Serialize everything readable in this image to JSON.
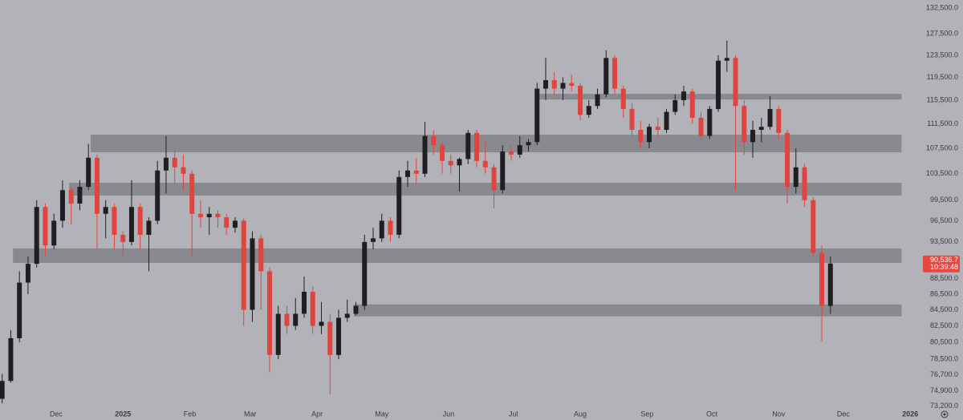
{
  "chart_data": {
    "type": "candlestick",
    "log_scale": true,
    "grid": false,
    "up_color": "#1f1f22",
    "down_color": "#e0443e",
    "zone_color": "#7b7c82",
    "xlim": [
      "2024-11-05",
      "2026-01-05"
    ],
    "xticks": [
      {
        "value": "2024-12-01",
        "label": "Dec"
      },
      {
        "value": "2025-01-01",
        "label": "2025"
      },
      {
        "value": "2025-02-01",
        "label": "Feb"
      },
      {
        "value": "2025-03-01",
        "label": "Mar"
      },
      {
        "value": "2025-04-01",
        "label": "Apr"
      },
      {
        "value": "2025-05-01",
        "label": "May"
      },
      {
        "value": "2025-06-01",
        "label": "Jun"
      },
      {
        "value": "2025-07-01",
        "label": "Jul"
      },
      {
        "value": "2025-08-01",
        "label": "Aug"
      },
      {
        "value": "2025-09-01",
        "label": "Sep"
      },
      {
        "value": "2025-10-01",
        "label": "Oct"
      },
      {
        "value": "2025-11-01",
        "label": "Nov"
      },
      {
        "value": "2025-12-01",
        "label": "Dec"
      },
      {
        "value": "2026-01-01",
        "label": "2026"
      }
    ],
    "ylim": [
      71700,
      134100
    ],
    "yticks": [
      {
        "value": 132500,
        "label": "132,500.0"
      },
      {
        "value": 127500,
        "label": "127,500.0"
      },
      {
        "value": 123500,
        "label": "123,500.0"
      },
      {
        "value": 119500,
        "label": "119,500.0"
      },
      {
        "value": 115500,
        "label": "115,500.0"
      },
      {
        "value": 111500,
        "label": "111,500.0"
      },
      {
        "value": 107500,
        "label": "107,500.0"
      },
      {
        "value": 103500,
        "label": "103,500.0"
      },
      {
        "value": 99500,
        "label": "99,500.0"
      },
      {
        "value": 96500,
        "label": "96,500.0"
      },
      {
        "value": 93500,
        "label": "93,500.0"
      },
      {
        "value": 88500,
        "label": "88,500.0"
      },
      {
        "value": 86500,
        "label": "86,500.0"
      },
      {
        "value": 84500,
        "label": "84,500.0"
      },
      {
        "value": 82500,
        "label": "82,500.0"
      },
      {
        "value": 80500,
        "label": "80,500.0"
      },
      {
        "value": 78500,
        "label": "78,500.0"
      },
      {
        "value": 76700,
        "label": "76,700.0"
      },
      {
        "value": 74900,
        "label": "74,900.0"
      },
      {
        "value": 73200,
        "label": "73,200.0"
      }
    ],
    "x": [
      "2024-11-06",
      "2024-11-10",
      "2024-11-14",
      "2024-11-18",
      "2024-11-22",
      "2024-11-26",
      "2024-11-30",
      "2024-12-04",
      "2024-12-08",
      "2024-12-12",
      "2024-12-16",
      "2024-12-20",
      "2024-12-24",
      "2024-12-28",
      "2025-01-01",
      "2025-01-05",
      "2025-01-09",
      "2025-01-13",
      "2025-01-17",
      "2025-01-21",
      "2025-01-25",
      "2025-01-29",
      "2025-02-02",
      "2025-02-06",
      "2025-02-10",
      "2025-02-14",
      "2025-02-18",
      "2025-02-22",
      "2025-02-26",
      "2025-03-02",
      "2025-03-06",
      "2025-03-10",
      "2025-03-14",
      "2025-03-18",
      "2025-03-22",
      "2025-03-26",
      "2025-03-30",
      "2025-04-03",
      "2025-04-07",
      "2025-04-11",
      "2025-04-15",
      "2025-04-19",
      "2025-04-23",
      "2025-04-27",
      "2025-05-01",
      "2025-05-05",
      "2025-05-09",
      "2025-05-13",
      "2025-05-17",
      "2025-05-21",
      "2025-05-25",
      "2025-05-29",
      "2025-06-02",
      "2025-06-06",
      "2025-06-10",
      "2025-06-14",
      "2025-06-18",
      "2025-06-22",
      "2025-06-26",
      "2025-06-30",
      "2025-07-04",
      "2025-07-08",
      "2025-07-12",
      "2025-07-16",
      "2025-07-20",
      "2025-07-24",
      "2025-07-28",
      "2025-08-01",
      "2025-08-05",
      "2025-08-09",
      "2025-08-13",
      "2025-08-17",
      "2025-08-21",
      "2025-08-25",
      "2025-08-29",
      "2025-09-02",
      "2025-09-06",
      "2025-09-10",
      "2025-09-14",
      "2025-09-18",
      "2025-09-22",
      "2025-09-26",
      "2025-09-30",
      "2025-10-04",
      "2025-10-08",
      "2025-10-12",
      "2025-10-16",
      "2025-10-20",
      "2025-10-24",
      "2025-10-28",
      "2025-11-01",
      "2025-11-05",
      "2025-11-09",
      "2025-11-13",
      "2025-11-17",
      "2025-11-21",
      "2025-11-25"
    ],
    "open": [
      74000,
      76000,
      81000,
      88000,
      90500,
      98500,
      93000,
      96500,
      101000,
      99000,
      101500,
      106000,
      97500,
      98500,
      94500,
      93500,
      98500,
      94500,
      96500,
      104000,
      106000,
      104500,
      103500,
      97500,
      97000,
      97500,
      97000,
      95500,
      96500,
      84500,
      94000,
      89500,
      79000,
      84000,
      82500,
      84000,
      86800,
      82500,
      83000,
      79000,
      83500,
      84000,
      85000,
      93500,
      94000,
      96500,
      94500,
      103000,
      104000,
      103500,
      109500,
      108000,
      105500,
      104800,
      105800,
      110000,
      105500,
      104500,
      101000,
      107000,
      106500,
      108000,
      108500,
      117500,
      119000,
      117500,
      118500,
      118000,
      113000,
      114500,
      116500,
      123000,
      117500,
      114000,
      110500,
      108500,
      111000,
      110500,
      113500,
      115500,
      117000,
      112500,
      109500,
      114000,
      122500,
      123000,
      114500,
      108500,
      110500,
      111000,
      114000,
      110000,
      101500,
      104500,
      99500,
      92000,
      85000
    ],
    "high": [
      76800,
      82000,
      89500,
      91500,
      99500,
      99000,
      97500,
      102500,
      101500,
      102500,
      108200,
      106500,
      99500,
      99000,
      95000,
      102500,
      99000,
      97000,
      105500,
      109500,
      107000,
      106500,
      104000,
      99500,
      98500,
      98000,
      97500,
      97000,
      96800,
      95000,
      94500,
      90000,
      85000,
      85000,
      86000,
      88800,
      87500,
      85500,
      84000,
      84500,
      85800,
      85500,
      94500,
      95500,
      97500,
      97000,
      104000,
      105500,
      106000,
      111800,
      110500,
      108500,
      106500,
      106000,
      110500,
      110500,
      108500,
      105000,
      108000,
      108000,
      109500,
      109000,
      118500,
      123000,
      120500,
      119500,
      120000,
      118500,
      115500,
      117500,
      124400,
      123500,
      118000,
      115000,
      112000,
      111500,
      112500,
      114000,
      116500,
      118000,
      117500,
      113500,
      114500,
      123500,
      126200,
      123500,
      115500,
      112000,
      112500,
      116200,
      114500,
      110500,
      107500,
      105000,
      100000,
      93000,
      91500
    ],
    "low": [
      73500,
      75800,
      80500,
      86500,
      90000,
      91500,
      92500,
      95500,
      96000,
      98000,
      101000,
      92500,
      94000,
      92500,
      91500,
      93000,
      92500,
      89500,
      96000,
      100500,
      102000,
      101000,
      91500,
      95500,
      94500,
      95500,
      94500,
      94800,
      82500,
      83000,
      84500,
      77000,
      78500,
      81500,
      82000,
      83500,
      81500,
      81500,
      74500,
      78500,
      83000,
      83800,
      84500,
      92500,
      93500,
      93500,
      94000,
      101500,
      102000,
      103000,
      106500,
      103500,
      103500,
      100800,
      105000,
      104500,
      103500,
      98300,
      100500,
      105500,
      106000,
      107000,
      108000,
      115500,
      116500,
      115500,
      117000,
      112000,
      112500,
      114000,
      116000,
      116500,
      112500,
      109500,
      107500,
      107500,
      109500,
      110000,
      113000,
      114500,
      111500,
      108800,
      109000,
      113500,
      120500,
      100900,
      106500,
      106000,
      108500,
      110500,
      109000,
      99000,
      100500,
      98500,
      91500,
      80600,
      84000
    ],
    "close": [
      76000,
      81000,
      88000,
      90500,
      98500,
      93000,
      96500,
      101000,
      99000,
      101500,
      106000,
      97500,
      98500,
      94500,
      93500,
      98500,
      94500,
      96500,
      104000,
      106000,
      104500,
      103500,
      97500,
      97000,
      97500,
      97000,
      95500,
      96500,
      84500,
      94000,
      89500,
      79000,
      84000,
      82500,
      84000,
      86800,
      82500,
      83000,
      79000,
      83500,
      84000,
      85000,
      93500,
      94000,
      96500,
      94500,
      103000,
      104000,
      103500,
      109500,
      108000,
      105500,
      104800,
      105800,
      110000,
      105500,
      104500,
      101000,
      107000,
      106500,
      108000,
      108500,
      117500,
      119000,
      117500,
      118500,
      118000,
      113000,
      114500,
      116500,
      123000,
      117500,
      114000,
      110500,
      108500,
      111000,
      110500,
      113500,
      115500,
      117000,
      112500,
      109500,
      114000,
      122500,
      123000,
      114500,
      108500,
      110500,
      111000,
      114000,
      110000,
      101500,
      104500,
      99500,
      92000,
      85000,
      90536.7
    ],
    "zones": [
      {
        "start": "2024-12-17",
        "end": "2025-12-28",
        "low": 106860,
        "high": 109700
      },
      {
        "start": "2024-12-07",
        "end": "2025-12-28",
        "low": 100200,
        "high": 102120
      },
      {
        "start": "2024-11-11",
        "end": "2025-12-28",
        "low": 90620,
        "high": 92600
      },
      {
        "start": "2025-04-18",
        "end": "2025-12-28",
        "low": 83670,
        "high": 85180
      },
      {
        "start": "2025-07-11",
        "end": "2025-12-28",
        "low": 115610,
        "high": 116590
      }
    ],
    "price_tag": {
      "value": 90536.7,
      "label": "90,536.7",
      "timer": "10:39:48",
      "color": "#e8473f"
    }
  }
}
